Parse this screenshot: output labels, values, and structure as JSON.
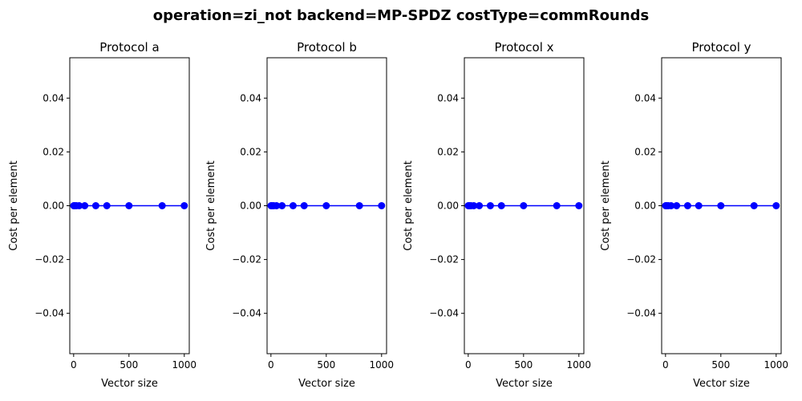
{
  "figure": {
    "title": "operation=zi_not backend=MP-SPDZ costType=commRounds"
  },
  "chart_data": [
    {
      "type": "line",
      "title": "Protocol a",
      "xlabel": "Vector size",
      "ylabel": "Cost per element",
      "x": [
        1,
        10,
        25,
        50,
        100,
        200,
        300,
        500,
        800,
        1000
      ],
      "y": [
        0,
        0,
        0,
        0,
        0,
        0,
        0,
        0,
        0,
        0
      ],
      "xlim": [
        -35,
        1045
      ],
      "ylim": [
        -0.055,
        0.055
      ],
      "xticks": [
        0,
        500,
        1000
      ],
      "yticks": [
        -0.04,
        -0.02,
        0.0,
        0.02,
        0.04
      ],
      "color": "#0000ff",
      "grid": false
    },
    {
      "type": "line",
      "title": "Protocol b",
      "xlabel": "Vector size",
      "ylabel": "Cost per element",
      "x": [
        1,
        10,
        25,
        50,
        100,
        200,
        300,
        500,
        800,
        1000
      ],
      "y": [
        0,
        0,
        0,
        0,
        0,
        0,
        0,
        0,
        0,
        0
      ],
      "xlim": [
        -35,
        1045
      ],
      "ylim": [
        -0.055,
        0.055
      ],
      "xticks": [
        0,
        500,
        1000
      ],
      "yticks": [
        -0.04,
        -0.02,
        0.0,
        0.02,
        0.04
      ],
      "color": "#0000ff",
      "grid": false
    },
    {
      "type": "line",
      "title": "Protocol x",
      "xlabel": "Vector size",
      "ylabel": "Cost per element",
      "x": [
        1,
        10,
        25,
        50,
        100,
        200,
        300,
        500,
        800,
        1000
      ],
      "y": [
        0,
        0,
        0,
        0,
        0,
        0,
        0,
        0,
        0,
        0
      ],
      "xlim": [
        -35,
        1045
      ],
      "ylim": [
        -0.055,
        0.055
      ],
      "xticks": [
        0,
        500,
        1000
      ],
      "yticks": [
        -0.04,
        -0.02,
        0.0,
        0.02,
        0.04
      ],
      "color": "#0000ff",
      "grid": false
    },
    {
      "type": "line",
      "title": "Protocol y",
      "xlabel": "Vector size",
      "ylabel": "Cost per element",
      "x": [
        1,
        10,
        25,
        50,
        100,
        200,
        300,
        500,
        800,
        1000
      ],
      "y": [
        0,
        0,
        0,
        0,
        0,
        0,
        0,
        0,
        0,
        0
      ],
      "xlim": [
        -35,
        1045
      ],
      "ylim": [
        -0.055,
        0.055
      ],
      "xticks": [
        0,
        500,
        1000
      ],
      "yticks": [
        -0.04,
        -0.02,
        0.0,
        0.02,
        0.04
      ],
      "color": "#0000ff",
      "grid": false
    }
  ]
}
